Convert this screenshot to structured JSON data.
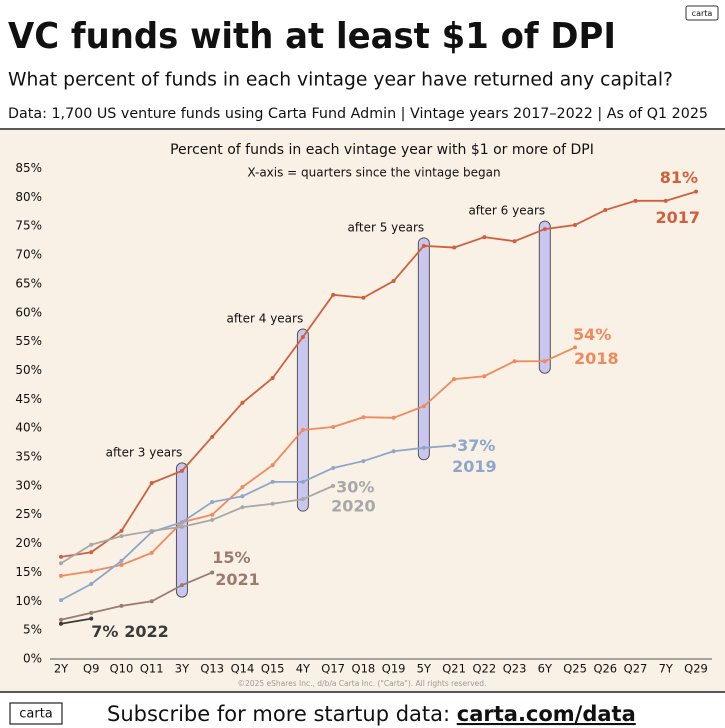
{
  "header": {
    "title": "VC funds with at least $1 of DPI",
    "subtitle": "What percent of funds in each vintage year have returned any capital?",
    "source": "Data: 1,700 US venture funds using Carta Fund Admin  |  Vintage years 2017–2022  |  As of Q1 2025",
    "badge": "carta"
  },
  "chart_data": {
    "type": "line",
    "title": "Percent of funds in each vintage year with $1 or more of DPI",
    "subtitle": "X-axis = quarters since the vintage began",
    "categories": [
      "2Y",
      "Q9",
      "Q10",
      "Q11",
      "3Y",
      "Q13",
      "Q14",
      "Q15",
      "4Y",
      "Q17",
      "Q18",
      "Q19",
      "5Y",
      "Q21",
      "Q22",
      "Q23",
      "6Y",
      "Q25",
      "Q26",
      "Q27",
      "7Y",
      "Q29"
    ],
    "ylim": [
      0,
      85
    ],
    "yticks": [
      {
        "value": 0,
        "label": "0%"
      },
      {
        "value": 5,
        "label": "5%"
      },
      {
        "value": 10,
        "label": "10%"
      },
      {
        "value": 15,
        "label": "15%"
      },
      {
        "value": 20,
        "label": "20%"
      },
      {
        "value": 25,
        "label": "25%"
      },
      {
        "value": 30,
        "label": "30%"
      },
      {
        "value": 35,
        "label": "35%"
      },
      {
        "value": 40,
        "label": "40%"
      },
      {
        "value": 45,
        "label": "45%"
      },
      {
        "value": 50,
        "label": "50%"
      },
      {
        "value": 55,
        "label": "55%"
      },
      {
        "value": 60,
        "label": "60%"
      },
      {
        "value": 65,
        "label": "65%"
      },
      {
        "value": 70,
        "label": "70%"
      },
      {
        "value": 75,
        "label": "75%"
      },
      {
        "value": 80,
        "label": "80%"
      },
      {
        "value": 85,
        "label": "85%"
      }
    ],
    "grid": false,
    "annotations": [
      "after 3 years",
      "after 4 years",
      "after 5 years",
      "after 6 years"
    ],
    "series": [
      {
        "name": "2017",
        "color": "#d0603b",
        "values": [
          17.7,
          18.5,
          22.2,
          30.5,
          32.6,
          38.5,
          44.4,
          48.7,
          55.8,
          63.1,
          62.6,
          65.5,
          71.6,
          71.3,
          73.1,
          72.4,
          74.5,
          75.2,
          77.8,
          79.4,
          79.4,
          81
        ],
        "value_labels": [
          null,
          null,
          null,
          null,
          null,
          null,
          null,
          null,
          null,
          null,
          null,
          null,
          null,
          null,
          null,
          null,
          null,
          null,
          null,
          null,
          null,
          "81%"
        ]
      },
      {
        "name": "2018",
        "color": "#f08a5e",
        "values": [
          14.4,
          15.2,
          16.3,
          18.4,
          23.7,
          25,
          29.8,
          33.6,
          39.7,
          40.2,
          41.9,
          41.8,
          43.8,
          48.5,
          49,
          51.6,
          51.6,
          54,
          null,
          null,
          null,
          null
        ],
        "value_labels": [
          null,
          null,
          null,
          null,
          null,
          null,
          null,
          null,
          null,
          null,
          null,
          null,
          null,
          null,
          null,
          null,
          null,
          "54%",
          null,
          null,
          null,
          null
        ]
      },
      {
        "name": "2019",
        "color": "#8ea6cc",
        "values": [
          10.2,
          13,
          17,
          22,
          23.7,
          27.2,
          28.2,
          30.7,
          30.7,
          33.1,
          34.3,
          36,
          36.6,
          37,
          null,
          null,
          null,
          null,
          null,
          null,
          null,
          null
        ],
        "value_labels": [
          null,
          null,
          null,
          null,
          null,
          null,
          null,
          null,
          null,
          null,
          null,
          null,
          null,
          "37%",
          null,
          null,
          null,
          null,
          null,
          null,
          null,
          null
        ]
      },
      {
        "name": "2020",
        "color": "#a8a8a8",
        "values": [
          16.6,
          19.8,
          21.3,
          22.2,
          22.9,
          24.1,
          26.3,
          26.9,
          27.7,
          30,
          null,
          null,
          null,
          null,
          null,
          null,
          null,
          null,
          null,
          null,
          null,
          null
        ],
        "value_labels": [
          null,
          null,
          null,
          null,
          null,
          null,
          null,
          null,
          null,
          "30%",
          null,
          null,
          null,
          null,
          null,
          null,
          null,
          null,
          null,
          null,
          null,
          null
        ]
      },
      {
        "name": "2021",
        "color": "#9c7b6f",
        "values": [
          6.8,
          8,
          9.2,
          10,
          12.8,
          15,
          null,
          null,
          null,
          null,
          null,
          null,
          null,
          null,
          null,
          null,
          null,
          null,
          null,
          null,
          null,
          null
        ],
        "value_labels": [
          null,
          null,
          null,
          null,
          null,
          "15%",
          null,
          null,
          null,
          null,
          null,
          null,
          null,
          null,
          null,
          null,
          null,
          null,
          null,
          null,
          null,
          null
        ]
      },
      {
        "name": "2022",
        "color": "#3a3a3a",
        "values": [
          6.1,
          7,
          null,
          null,
          null,
          null,
          null,
          null,
          null,
          null,
          null,
          null,
          null,
          null,
          null,
          null,
          null,
          null,
          null,
          null,
          null,
          null
        ],
        "value_labels": [
          null,
          "7%",
          null,
          null,
          null,
          null,
          null,
          null,
          null,
          null,
          null,
          null,
          null,
          null,
          null,
          null,
          null,
          null,
          null,
          null,
          null,
          null
        ]
      }
    ]
  },
  "footer": {
    "copyright": "©2025 eShares Inc., d/b/a Carta Inc. (\"Carta\"). All rights reserved.",
    "logo": "carta",
    "cta": "Subscribe for more startup data: ",
    "link": "carta.com/data"
  }
}
